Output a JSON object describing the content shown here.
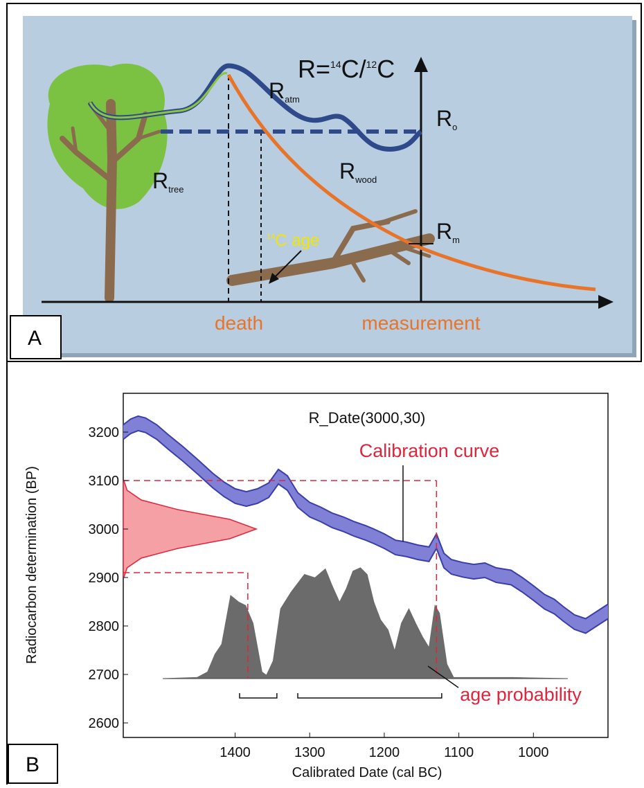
{
  "panel_a": {
    "label": "A",
    "formula": [
      "R=",
      "14",
      "C/",
      "12",
      "C"
    ],
    "r_atm": [
      "R",
      "atm"
    ],
    "r_o": [
      "R",
      "o"
    ],
    "r_tree": [
      "R",
      "tree"
    ],
    "r_wood": [
      "R",
      "wood"
    ],
    "r_m": [
      "R",
      "m"
    ],
    "age": [
      "14",
      "C age"
    ],
    "death": "death",
    "measurement": "measurement"
  },
  "panel_b": {
    "label": "B",
    "chart_data": {
      "type": "calibration",
      "title": "R_Date(3000,30)",
      "x_label": "Calibrated Date (cal BC)",
      "y_label": "Radiocarbon determination (BP)",
      "xlim": [
        1550,
        900
      ],
      "ylim": [
        2570,
        3280
      ],
      "xticks": [
        1400,
        1300,
        1200,
        1100,
        1000
      ],
      "yticks": [
        2600,
        2700,
        2800,
        2900,
        3000,
        3100,
        3200
      ],
      "series": [
        {
          "name": "Calibration curve",
          "color": "#7f80d6",
          "line_color": "#3a3fa8",
          "x": [
            1550,
            1540,
            1530,
            1520,
            1505,
            1490,
            1470,
            1450,
            1430,
            1415,
            1400,
            1385,
            1370,
            1355,
            1342,
            1330,
            1316,
            1300,
            1285,
            1270,
            1255,
            1240,
            1225,
            1214,
            1200,
            1185,
            1170,
            1155,
            1140,
            1130,
            1120,
            1110,
            1095,
            1080,
            1065,
            1050,
            1030,
            1015,
            1000,
            985,
            972,
            960,
            945,
            930,
            915,
            900
          ],
          "upper": [
            3215,
            3227,
            3233,
            3229,
            3215,
            3195,
            3170,
            3143,
            3115,
            3097,
            3083,
            3077,
            3083,
            3095,
            3123,
            3110,
            3075,
            3055,
            3045,
            3033,
            3025,
            3015,
            3007,
            3000,
            2990,
            2977,
            2973,
            2967,
            2963,
            2990,
            2950,
            2937,
            2931,
            2927,
            2930,
            2920,
            2915,
            2900,
            2883,
            2865,
            2855,
            2840,
            2823,
            2815,
            2830,
            2845
          ],
          "lower": [
            3185,
            3197,
            3203,
            3199,
            3185,
            3165,
            3140,
            3113,
            3085,
            3067,
            3053,
            3047,
            3053,
            3065,
            3093,
            3080,
            3045,
            3025,
            3015,
            3003,
            2995,
            2985,
            2977,
            2970,
            2960,
            2947,
            2943,
            2937,
            2933,
            2960,
            2920,
            2907,
            2901,
            2897,
            2900,
            2890,
            2885,
            2870,
            2853,
            2835,
            2825,
            2810,
            2793,
            2785,
            2800,
            2815
          ]
        },
        {
          "name": "age probability",
          "color": "#6b6b6b",
          "x": [
            1497,
            1451,
            1437,
            1427,
            1418,
            1406,
            1395,
            1386,
            1376,
            1364,
            1358,
            1349,
            1339,
            1325,
            1307,
            1293,
            1279,
            1270,
            1260,
            1251,
            1242,
            1232,
            1223,
            1214,
            1205,
            1195,
            1186,
            1177,
            1167,
            1158,
            1149,
            1140,
            1132,
            1126,
            1116,
            1107,
            1028,
            954
          ],
          "values": [
            0,
            0.01,
            0.06,
            0.22,
            0.31,
            0.75,
            0.69,
            0.66,
            0.5,
            0.06,
            0.03,
            0.16,
            0.63,
            0.78,
            0.94,
            0.91,
            0.99,
            0.84,
            0.69,
            0.81,
            0.97,
            1,
            0.94,
            0.69,
            0.53,
            0.44,
            0.25,
            0.5,
            0.63,
            0.5,
            0.38,
            0.28,
            0.66,
            0.59,
            0.13,
            0.01,
            0.01,
            0
          ]
        }
      ],
      "measurement": {
        "color": "#f4a0a4",
        "line_color": "#e0243c",
        "y": [
          2900,
          2920,
          2940,
          2960,
          2980,
          3000,
          3020,
          3040,
          3060,
          3080,
          3100
        ],
        "density": [
          0.004,
          0.029,
          0.135,
          0.411,
          0.801,
          1,
          0.801,
          0.411,
          0.135,
          0.029,
          0.004
        ]
      },
      "range_y": [
        2910,
        3100
      ],
      "range_x": [
        1383,
        1130
      ],
      "hpd": [
        [
          1394,
          1344
        ],
        [
          1316,
          1123
        ]
      ]
    }
  }
}
